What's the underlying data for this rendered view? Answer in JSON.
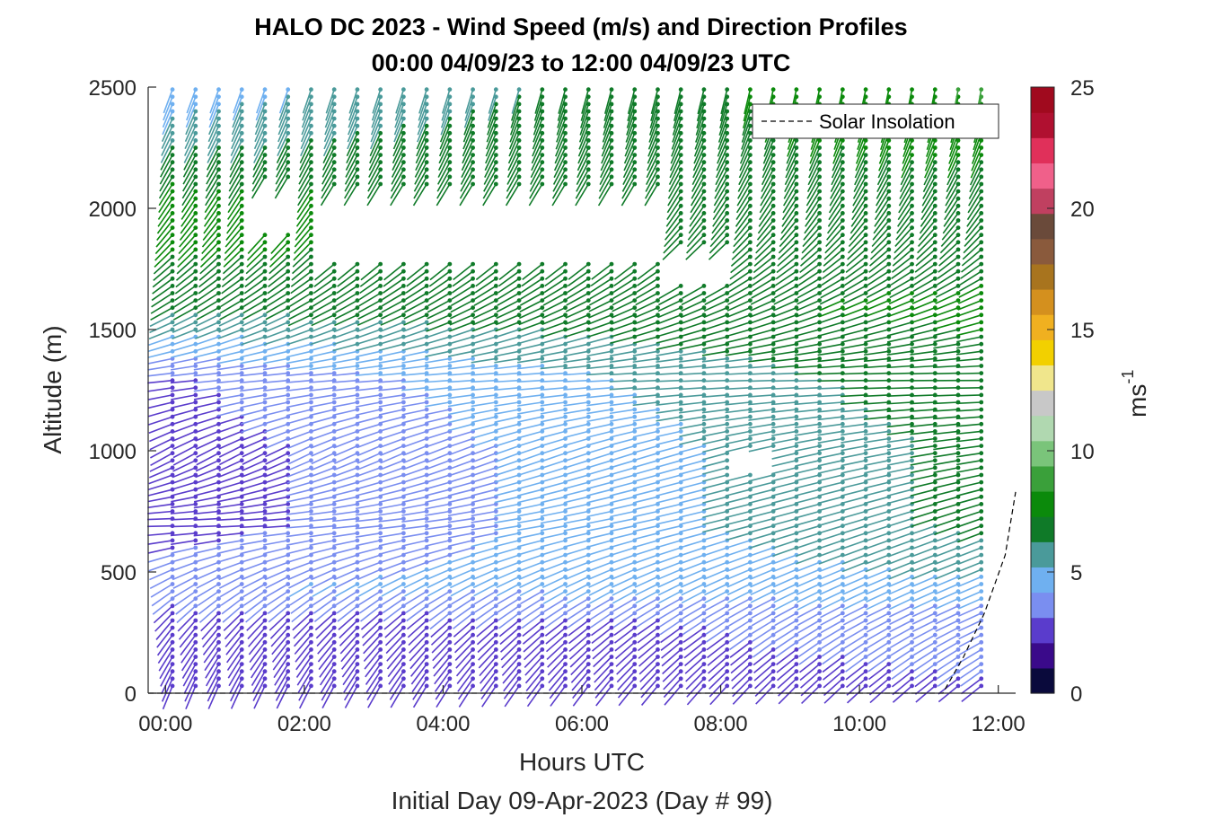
{
  "chart_data": {
    "type": "wind-barb-profile",
    "title": "HALO DC 2023 - Wind Speed (m/s) and Direction Profiles",
    "subtitle": "00:00 04/09/23 to 12:00 04/09/23  UTC",
    "xlabel": "Hours UTC",
    "ylabel": "Altitude (m)",
    "footer": "Initial Day 09-Apr-2023 (Day # 99)",
    "xlim": [
      -0.25,
      12.25
    ],
    "ylim": [
      0,
      2500
    ],
    "x_ticks": [
      "00:00",
      "02:00",
      "04:00",
      "06:00",
      "08:00",
      "10:00",
      "12:00"
    ],
    "y_ticks": [
      "0",
      "500",
      "1000",
      "1500",
      "2000",
      "2500"
    ],
    "legend": {
      "label": "Solar Insolation",
      "placement": "top-right",
      "line_style": "dashed"
    },
    "colorbar": {
      "label": "ms",
      "label_superscript": "-1",
      "ticks": [
        "0",
        "5",
        "10",
        "15",
        "20",
        "25"
      ],
      "range": [
        0,
        25
      ],
      "colors": [
        "#0a0a3c",
        "#3a0a8a",
        "#5a3ccc",
        "#7a8ef0",
        "#6fb0f0",
        "#4a9a9a",
        "#0f7a28",
        "#0b8a0b",
        "#3aa03a",
        "#7ac47a",
        "#b0d8b0",
        "#c8c8c8",
        "#f0e68c",
        "#f2d000",
        "#f0b020",
        "#d4901e",
        "#a8741e",
        "#8a5a3c",
        "#6a4a3a",
        "#c04060",
        "#f0608a",
        "#e0305a",
        "#b01030",
        "#a00a1e"
      ]
    },
    "insolation": {
      "x": [
        -0.25,
        11.2,
        11.5,
        11.8,
        12.1,
        12.25
      ],
      "y": [
        0,
        0,
        150,
        330,
        570,
        830
      ]
    },
    "wind_field": {
      "times_hours_start": 0.1,
      "times_hours_step": 0.333,
      "times_count": 36,
      "altitude_levels_m": [
        30,
        60,
        90,
        120,
        150,
        180,
        210,
        240,
        270,
        300,
        330,
        360,
        390,
        420,
        450,
        480,
        510,
        540,
        570,
        600,
        630,
        660,
        690,
        720,
        750,
        780,
        810,
        840,
        870,
        900,
        930,
        960,
        990,
        1020,
        1050,
        1080,
        1110,
        1140,
        1170,
        1200,
        1230,
        1260,
        1290,
        1320,
        1350,
        1380,
        1410,
        1440,
        1470,
        1500,
        1530,
        1560,
        1590,
        1620,
        1650,
        1680,
        1710,
        1740,
        1770,
        1800,
        1830,
        1860,
        1890,
        1920,
        1950,
        1980,
        2010,
        2040,
        2070,
        2100,
        2130,
        2160,
        2190,
        2220,
        2250,
        2280,
        2310,
        2340,
        2370,
        2400,
        2430,
        2460,
        2490
      ],
      "data_gaps": [
        {
          "t_start": 2.3,
          "t_end": 7.4,
          "alt_start": 1780,
          "alt_end": 2080
        },
        {
          "t_start": 1.3,
          "t_end": 2.0,
          "alt_start": 1900,
          "alt_end": 2100
        },
        {
          "t_start": 7.4,
          "t_end": 8.1,
          "alt_start": 1700,
          "alt_end": 1830
        },
        {
          "t_start": 8.1,
          "t_end": 8.8,
          "alt_start": 930,
          "alt_end": 1000
        }
      ],
      "speed_profile": [
        {
          "alt": 0,
          "early": 2.5,
          "late": 3.0
        },
        {
          "alt": 300,
          "early": 2.5,
          "late": 3.5
        },
        {
          "alt": 450,
          "early": 4.0,
          "late": 5.0
        },
        {
          "alt": 700,
          "early": 2.5,
          "late": 6.5
        },
        {
          "alt": 1000,
          "early": 2.5,
          "late": 6.5
        },
        {
          "alt": 1300,
          "early": 3.0,
          "late": 7.0
        },
        {
          "alt": 1600,
          "early": 6.5,
          "late": 7.5
        },
        {
          "alt": 2000,
          "early": 8.0,
          "late": 6.5
        },
        {
          "alt": 2500,
          "early": 4.5,
          "late": 8.5
        }
      ],
      "direction_profile_deg": [
        {
          "alt": 0,
          "early": 200,
          "late": 230
        },
        {
          "alt": 300,
          "early": 220,
          "late": 245
        },
        {
          "alt": 700,
          "early": 270,
          "late": 250
        },
        {
          "alt": 1000,
          "early": 240,
          "late": 262
        },
        {
          "alt": 1300,
          "early": 265,
          "late": 270
        },
        {
          "alt": 1600,
          "early": 240,
          "late": 250
        },
        {
          "alt": 2000,
          "early": 215,
          "late": 215
        },
        {
          "alt": 2500,
          "early": 200,
          "late": 190
        }
      ]
    }
  }
}
